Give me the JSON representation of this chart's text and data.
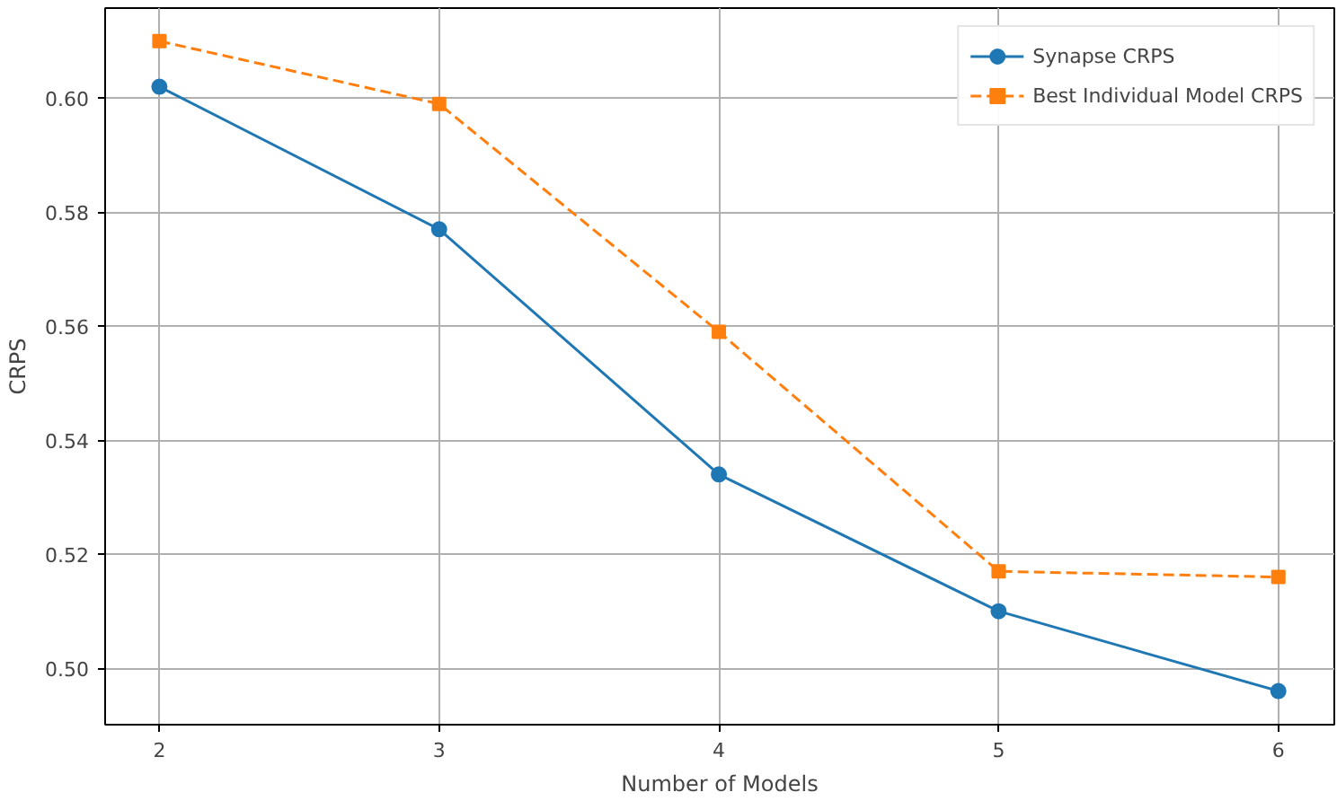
{
  "chart_data": {
    "type": "line",
    "xlabel": "Number of Models",
    "ylabel": "CRPS",
    "x": [
      2,
      3,
      4,
      5,
      6
    ],
    "xlim": [
      1.806,
      6.2
    ],
    "xticks": [
      2,
      3,
      4,
      5,
      6
    ],
    "ylim": [
      0.4901,
      0.6158
    ],
    "yticks": [
      {
        "value": 0.5,
        "label": "0.50"
      },
      {
        "value": 0.52,
        "label": "0.52"
      },
      {
        "value": 0.54,
        "label": "0.54"
      },
      {
        "value": 0.56,
        "label": "0.56"
      },
      {
        "value": 0.58,
        "label": "0.58"
      },
      {
        "value": 0.6,
        "label": "0.60"
      }
    ],
    "grid": true,
    "legend": "top right",
    "series": [
      {
        "name": "Synapse CRPS",
        "color": "#1f77b4",
        "values": [
          0.602,
          0.577,
          0.534,
          0.51,
          0.496
        ],
        "marker": "circle",
        "line_style": "solid"
      },
      {
        "name": "Best Individual Model CRPS",
        "color": "#ff7f0e",
        "values": [
          0.61,
          0.599,
          0.559,
          0.517,
          0.516
        ],
        "marker": "square",
        "line_style": "dashed"
      }
    ]
  }
}
